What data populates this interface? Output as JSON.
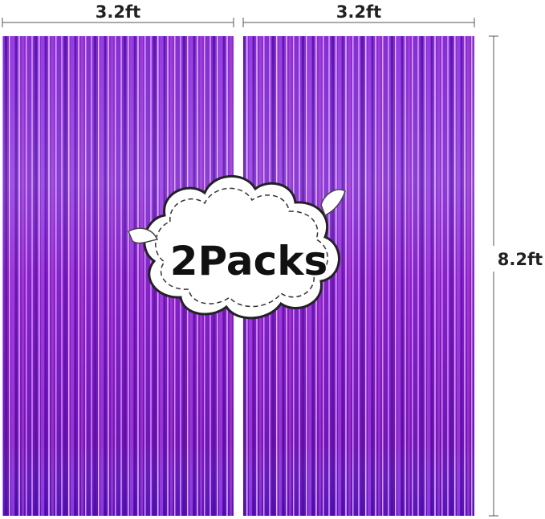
{
  "dimensions": {
    "width_left": "3.2ft",
    "width_right": "3.2ft",
    "height": "8.2ft"
  },
  "badge": "2Packs"
}
